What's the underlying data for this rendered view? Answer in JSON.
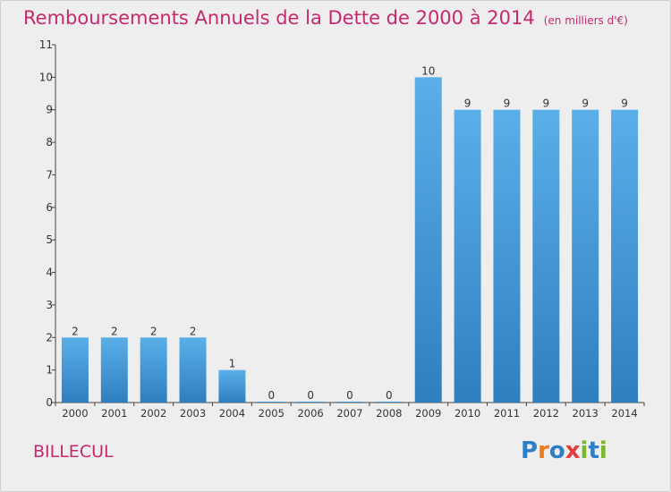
{
  "header": {
    "title": "Remboursements Annuels de la Dette de 2000 à 2014",
    "unit": "(en milliers d'€)"
  },
  "footer": {
    "commune": "BILLECUL",
    "logo_text": "Proxiti",
    "logo_letter_colors": [
      "#2f7fc6",
      "#f07a1a",
      "#2f7fc6",
      "#e23b3b",
      "#7ab52a",
      "#2f7fc6",
      "#7ab52a"
    ]
  },
  "chart_data": {
    "type": "bar",
    "categories": [
      "2000",
      "2001",
      "2002",
      "2003",
      "2004",
      "2005",
      "2006",
      "2007",
      "2008",
      "2009",
      "2010",
      "2011",
      "2012",
      "2013",
      "2014"
    ],
    "values": [
      2,
      2,
      2,
      2,
      1,
      0,
      0,
      0,
      0,
      10,
      9,
      9,
      9,
      9,
      9
    ],
    "title": "Remboursements Annuels de la Dette de 2000 à 2014",
    "xlabel": "",
    "ylabel": "",
    "ylim": [
      0,
      11
    ],
    "yticks": [
      0,
      1,
      2,
      3,
      4,
      5,
      6,
      7,
      8,
      9,
      10,
      11
    ],
    "grid": false,
    "legend": "none",
    "bar_color_top": "#5aafe8",
    "bar_color_bottom": "#2f7fc0"
  }
}
